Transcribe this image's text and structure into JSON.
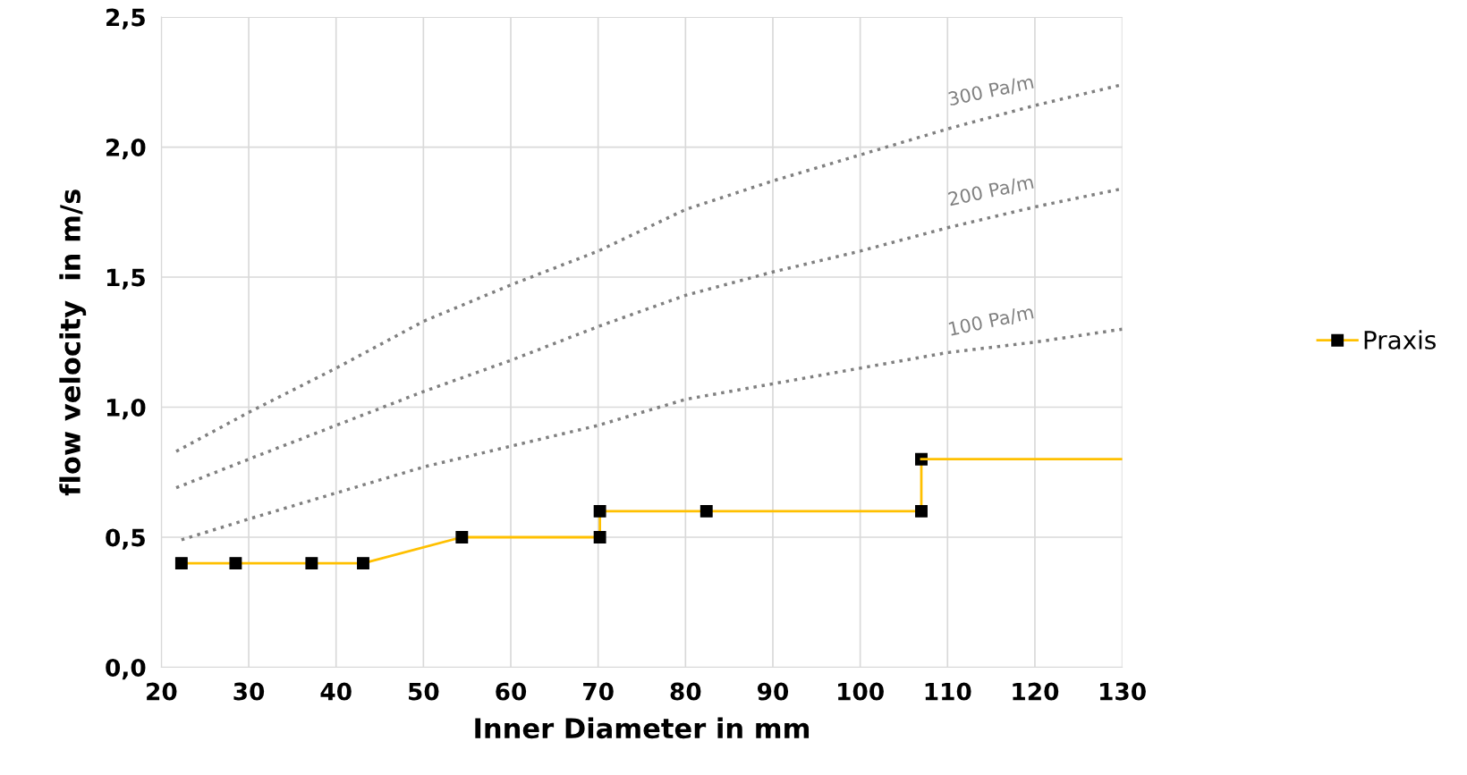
{
  "chart_data": {
    "type": "line",
    "xlabel": "Inner Diameter in mm",
    "ylabel": "flow velocity  in m/s",
    "xlim": [
      20,
      130
    ],
    "xticks": [
      20,
      30,
      40,
      50,
      60,
      70,
      80,
      90,
      100,
      110,
      120,
      130
    ],
    "ylim": [
      0,
      2.5
    ],
    "yticks": [
      {
        "value": 0,
        "label": "0,0"
      },
      {
        "value": 0.5,
        "label": "0,5"
      },
      {
        "value": 1,
        "label": "1,0"
      },
      {
        "value": 1.5,
        "label": "1,5"
      },
      {
        "value": 2,
        "label": "2,0"
      },
      {
        "value": 2.5,
        "label": "2,5"
      }
    ],
    "grid": true,
    "legend": "right",
    "series": [
      {
        "name": "Praxis",
        "color": "#ffc000",
        "marker": "square",
        "line_style": "solid",
        "x": [
          22.3,
          28.5,
          37.2,
          43.1,
          54.4,
          70.2,
          70.2,
          82.4,
          107,
          107
        ],
        "values": [
          0.4,
          0.4,
          0.4,
          0.4,
          0.5,
          0.5,
          0.6,
          0.6,
          0.6,
          0.8
        ]
      },
      {
        "color": "#ffc000",
        "marker": "none",
        "line_style": "solid",
        "x": [
          107,
          130
        ],
        "values": [
          0.8,
          0.8
        ]
      },
      {
        "name": "300 Pa/m",
        "color": "#808080",
        "marker": "none",
        "line_style": "dotted",
        "x": [
          21.7,
          30,
          40,
          50,
          60,
          70,
          80,
          90,
          100,
          110,
          120,
          130
        ],
        "values": [
          0.83,
          0.98,
          1.15,
          1.33,
          1.47,
          1.6,
          1.76,
          1.87,
          1.97,
          2.07,
          2.16,
          2.24
        ]
      },
      {
        "name": "200 Pa/m",
        "color": "#808080",
        "marker": "none",
        "line_style": "dotted",
        "x": [
          21.7,
          30,
          40,
          50,
          60,
          70,
          80,
          90,
          100,
          110,
          120,
          130
        ],
        "values": [
          0.69,
          0.8,
          0.93,
          1.06,
          1.18,
          1.31,
          1.43,
          1.52,
          1.6,
          1.69,
          1.77,
          1.84
        ]
      },
      {
        "name": "100 Pa/m",
        "color": "#808080",
        "marker": "none",
        "line_style": "dotted",
        "x": [
          22.3,
          30,
          40,
          50,
          60,
          70,
          80,
          90,
          100,
          110,
          120,
          130
        ],
        "values": [
          0.49,
          0.57,
          0.67,
          0.77,
          0.85,
          0.93,
          1.03,
          1.09,
          1.15,
          1.21,
          1.25,
          1.3
        ]
      }
    ]
  }
}
